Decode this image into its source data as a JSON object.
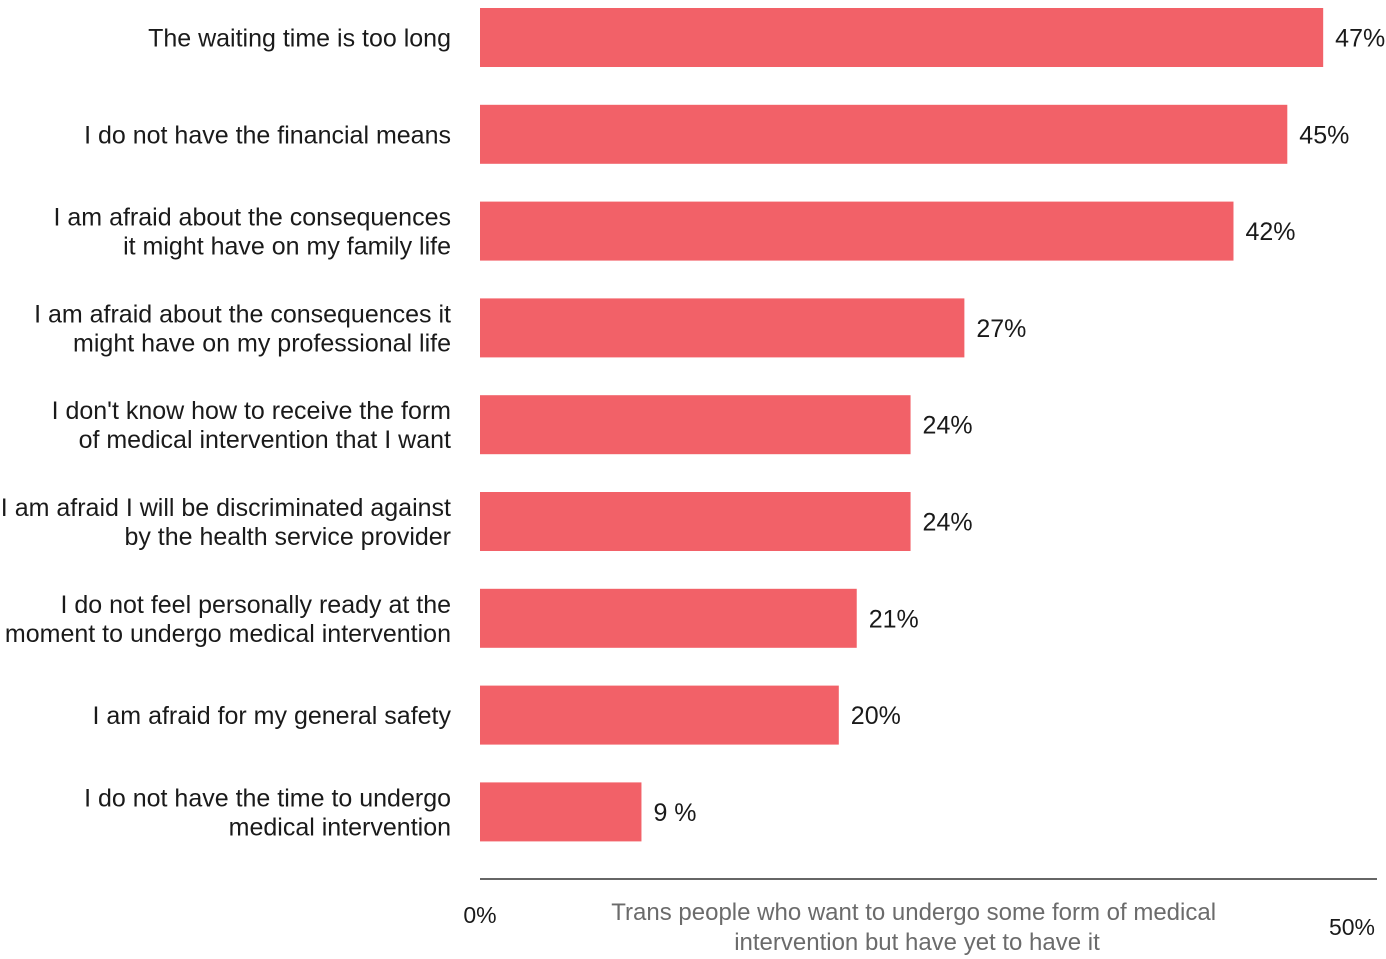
{
  "chart_data": {
    "type": "bar",
    "orientation": "horizontal",
    "categories": [
      [
        "The waiting time is too long"
      ],
      [
        "I do not have the financial means"
      ],
      [
        "I am afraid about the consequences",
        "it might have on my family life"
      ],
      [
        "I am afraid about the consequences it",
        "might have on my professional life"
      ],
      [
        "I don't know how to receive the form",
        "of medical intervention that I want"
      ],
      [
        "I am afraid I will be discriminated against",
        "by the health service provider"
      ],
      [
        "I do not feel personally ready at the",
        "moment to undergo medical intervention"
      ],
      [
        "I am afraid for my general safety"
      ],
      [
        "I do not have the time to undergo",
        "medical intervention"
      ]
    ],
    "values": [
      47,
      45,
      42,
      27,
      24,
      24,
      21,
      20,
      9
    ],
    "value_labels": [
      "47%",
      "45%",
      "42%",
      "27%",
      "24%",
      "24%",
      "21%",
      "20%",
      "9 %"
    ],
    "xlim": [
      0,
      50
    ],
    "x_ticks": [
      "0%",
      "50%"
    ],
    "xlabel": [
      "Trans people who want to undergo some form of medical",
      "intervention but have yet to have it"
    ],
    "bar_color": "#f26168",
    "axis_color": "#333333",
    "grid": false,
    "legend": "none"
  }
}
